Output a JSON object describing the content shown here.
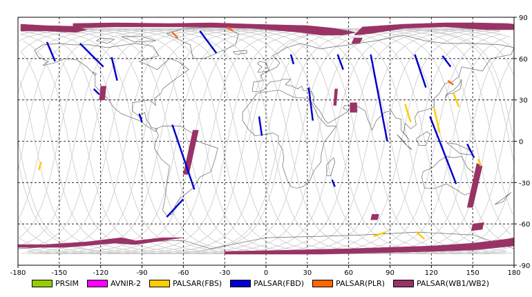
{
  "map": {
    "lon_range": [
      -180,
      180
    ],
    "lat_range": [
      -90,
      90
    ],
    "grid": true,
    "grid_style": "dashed",
    "x_ticks": [
      -180,
      -150,
      -120,
      -90,
      -60,
      -30,
      0,
      30,
      60,
      90,
      120,
      150,
      180
    ],
    "y_ticks": [
      90,
      60,
      30,
      0,
      -30,
      -60,
      -90
    ],
    "x_tick_labels": [
      "-180",
      "-150",
      "-120",
      "-90",
      "-60",
      "-30",
      "0",
      "30",
      "60",
      "90",
      "120",
      "150",
      "180"
    ],
    "y_tick_labels": [
      "90",
      "60",
      "30",
      "0",
      "-30",
      "-60",
      "-90"
    ],
    "y_axis_side": "right",
    "legend_position": "bottom"
  },
  "legend": [
    {
      "label": "PRSIM",
      "color": "#99cc00"
    },
    {
      "label": "AVNIR-2",
      "color": "#ff00ff"
    },
    {
      "label": "PALSAR(FBS)",
      "color": "#ffcc00"
    },
    {
      "label": "PALSAR(FBD)",
      "color": "#0000cc"
    },
    {
      "label": "PALSAR(PLR)",
      "color": "#ff6600"
    },
    {
      "label": "PALSAR(WB1/WB2)",
      "color": "#993366"
    }
  ],
  "colors": {
    "orbit_tracks": "#c8c8c8",
    "coastline": "#666666",
    "grid": "#000000",
    "frame": "#000000"
  },
  "chart_data": {
    "type": "map",
    "xlim": [
      -180,
      180
    ],
    "ylim": [
      -90,
      90
    ],
    "series": [
      {
        "legend_index": 5,
        "kind": "band",
        "points": [
          [
            -178,
            85
          ],
          [
            -160,
            84
          ],
          [
            -140,
            83.5
          ],
          [
            -130,
            81
          ],
          [
            -138,
            79
          ],
          [
            -160,
            80
          ],
          [
            -178,
            80
          ]
        ]
      },
      {
        "legend_index": 5,
        "kind": "band",
        "points": [
          [
            -140,
            85.5
          ],
          [
            -110,
            86
          ],
          [
            -70,
            85.5
          ],
          [
            -40,
            86
          ],
          [
            -10,
            85
          ],
          [
            30,
            84
          ],
          [
            50,
            82
          ],
          [
            60,
            80
          ],
          [
            65,
            79
          ],
          [
            55,
            77
          ],
          [
            40,
            77
          ],
          [
            25,
            79
          ],
          [
            -10,
            82
          ],
          [
            -60,
            83
          ],
          [
            -110,
            83
          ],
          [
            -140,
            82
          ]
        ]
      },
      {
        "legend_index": 5,
        "kind": "band",
        "points": [
          [
            70,
            83
          ],
          [
            100,
            85
          ],
          [
            130,
            86
          ],
          [
            150,
            86
          ],
          [
            175,
            85.5
          ],
          [
            180,
            85
          ],
          [
            180,
            81
          ],
          [
            160,
            81
          ],
          [
            130,
            83
          ],
          [
            100,
            82
          ],
          [
            75,
            78
          ],
          [
            64,
            77
          ]
        ]
      },
      {
        "legend_index": 5,
        "kind": "band",
        "points": [
          [
            64,
            75
          ],
          [
            70,
            75
          ],
          [
            68,
            71
          ],
          [
            62,
            71
          ]
        ]
      },
      {
        "legend_index": 5,
        "kind": "band",
        "points": [
          [
            -120,
            40
          ],
          [
            -116,
            40
          ],
          [
            -117,
            30
          ],
          [
            -121,
            30
          ]
        ]
      },
      {
        "legend_index": 5,
        "kind": "band",
        "points": [
          [
            -53,
            8
          ],
          [
            -49,
            8
          ],
          [
            -56,
            -24
          ],
          [
            -60,
            -24
          ]
        ]
      },
      {
        "legend_index": 5,
        "kind": "band",
        "points": [
          [
            50,
            38
          ],
          [
            52,
            38
          ],
          [
            51,
            26
          ],
          [
            49,
            26
          ]
        ]
      },
      {
        "legend_index": 5,
        "kind": "band",
        "points": [
          [
            61,
            28
          ],
          [
            66,
            28
          ],
          [
            66,
            21
          ],
          [
            61,
            21
          ]
        ]
      },
      {
        "legend_index": 5,
        "kind": "band",
        "points": [
          [
            153,
            -16
          ],
          [
            157,
            -18
          ],
          [
            150,
            -48
          ],
          [
            146,
            -48
          ]
        ]
      },
      {
        "legend_index": 5,
        "kind": "band",
        "points": [
          [
            150,
            -60
          ],
          [
            158,
            -59
          ],
          [
            157,
            -64
          ],
          [
            149,
            -65
          ]
        ]
      },
      {
        "legend_index": 5,
        "kind": "band",
        "points": [
          [
            77,
            -53
          ],
          [
            82,
            -53
          ],
          [
            81,
            -57
          ],
          [
            76,
            -57
          ]
        ]
      },
      {
        "legend_index": 5,
        "kind": "band",
        "points": [
          [
            -180,
            -77
          ],
          [
            -145,
            -77
          ],
          [
            -110,
            -74
          ],
          [
            -95,
            -72
          ],
          [
            -105,
            -70
          ],
          [
            -130,
            -73
          ],
          [
            -160,
            -75
          ],
          [
            -180,
            -75
          ]
        ]
      },
      {
        "legend_index": 5,
        "kind": "band",
        "points": [
          [
            -30,
            -80
          ],
          [
            20,
            -79
          ],
          [
            60,
            -78
          ],
          [
            90,
            -77
          ],
          [
            120,
            -76
          ],
          [
            150,
            -74
          ],
          [
            175,
            -71
          ],
          [
            180,
            -70
          ],
          [
            180,
            -76
          ],
          [
            150,
            -79
          ],
          [
            120,
            -80
          ],
          [
            80,
            -81
          ],
          [
            40,
            -82
          ],
          [
            0,
            -82
          ],
          [
            -30,
            -82
          ]
        ]
      },
      {
        "legend_index": 5,
        "kind": "band",
        "points": [
          [
            -110,
            -74
          ],
          [
            -75,
            -70
          ],
          [
            -60,
            -70
          ],
          [
            -95,
            -75
          ]
        ]
      },
      {
        "legend_index": 3,
        "kind": "track",
        "points": [
          [
            -159,
            72
          ],
          [
            -153,
            58
          ]
        ]
      },
      {
        "legend_index": 3,
        "kind": "track",
        "points": [
          [
            -135,
            71
          ],
          [
            -118,
            54
          ]
        ]
      },
      {
        "legend_index": 3,
        "kind": "track",
        "points": [
          [
            -125,
            38
          ],
          [
            -121,
            34
          ]
        ]
      },
      {
        "legend_index": 3,
        "kind": "track",
        "points": [
          [
            -112,
            61
          ],
          [
            -108,
            44
          ]
        ]
      },
      {
        "legend_index": 3,
        "kind": "track",
        "points": [
          [
            -92,
            20
          ],
          [
            -90,
            14
          ]
        ]
      },
      {
        "legend_index": 3,
        "kind": "track",
        "points": [
          [
            -48,
            80
          ],
          [
            -36,
            64
          ]
        ]
      },
      {
        "legend_index": 3,
        "kind": "track",
        "points": [
          [
            -68,
            12
          ],
          [
            -52,
            -35
          ]
        ]
      },
      {
        "legend_index": 3,
        "kind": "track",
        "points": [
          [
            -60,
            -42
          ],
          [
            -72,
            -55
          ]
        ]
      },
      {
        "legend_index": 3,
        "kind": "track",
        "points": [
          [
            18,
            63
          ],
          [
            20,
            56
          ]
        ]
      },
      {
        "legend_index": 3,
        "kind": "track",
        "points": [
          [
            -5,
            18
          ],
          [
            -3,
            4
          ]
        ]
      },
      {
        "legend_index": 3,
        "kind": "track",
        "points": [
          [
            31,
            39
          ],
          [
            34,
            15
          ]
        ]
      },
      {
        "legend_index": 3,
        "kind": "track",
        "points": [
          [
            52,
            63
          ],
          [
            56,
            52
          ]
        ]
      },
      {
        "legend_index": 3,
        "kind": "track",
        "points": [
          [
            48,
            -28
          ],
          [
            50,
            -33
          ]
        ]
      },
      {
        "legend_index": 3,
        "kind": "track",
        "points": [
          [
            76,
            63
          ],
          [
            88,
            0
          ]
        ]
      },
      {
        "legend_index": 3,
        "kind": "track",
        "points": [
          [
            108,
            63
          ],
          [
            116,
            39
          ]
        ]
      },
      {
        "legend_index": 3,
        "kind": "track",
        "points": [
          [
            119,
            18
          ],
          [
            138,
            -31
          ]
        ]
      },
      {
        "legend_index": 3,
        "kind": "track",
        "points": [
          [
            128,
            62
          ],
          [
            134,
            54
          ]
        ]
      },
      {
        "legend_index": 3,
        "kind": "track",
        "points": [
          [
            146,
            -2
          ],
          [
            151,
            -12
          ]
        ]
      },
      {
        "legend_index": 2,
        "kind": "track",
        "points": [
          [
            101,
            27
          ],
          [
            105,
            14
          ]
        ]
      },
      {
        "legend_index": 2,
        "kind": "track",
        "points": [
          [
            122,
            24
          ],
          [
            126,
            6
          ]
        ]
      },
      {
        "legend_index": 2,
        "kind": "track",
        "points": [
          [
            136,
            35
          ],
          [
            140,
            25
          ]
        ]
      },
      {
        "legend_index": 2,
        "kind": "track",
        "points": [
          [
            -163,
            -15
          ],
          [
            -165,
            -21
          ]
        ]
      },
      {
        "legend_index": 2,
        "kind": "track",
        "points": [
          [
            78,
            -69
          ],
          [
            87,
            -66
          ]
        ]
      },
      {
        "legend_index": 2,
        "kind": "track",
        "points": [
          [
            109,
            -66
          ],
          [
            115,
            -71
          ]
        ]
      },
      {
        "legend_index": 2,
        "kind": "track",
        "points": [
          [
            154,
            -13
          ],
          [
            156,
            -18
          ]
        ]
      },
      {
        "legend_index": 4,
        "kind": "track",
        "points": [
          [
            -68,
            79
          ],
          [
            -64,
            75
          ]
        ]
      },
      {
        "legend_index": 4,
        "kind": "track",
        "points": [
          [
            -28,
            83
          ],
          [
            -24,
            80
          ]
        ]
      },
      {
        "legend_index": 4,
        "kind": "track",
        "points": [
          [
            132,
            44
          ],
          [
            136,
            41
          ]
        ]
      }
    ]
  }
}
